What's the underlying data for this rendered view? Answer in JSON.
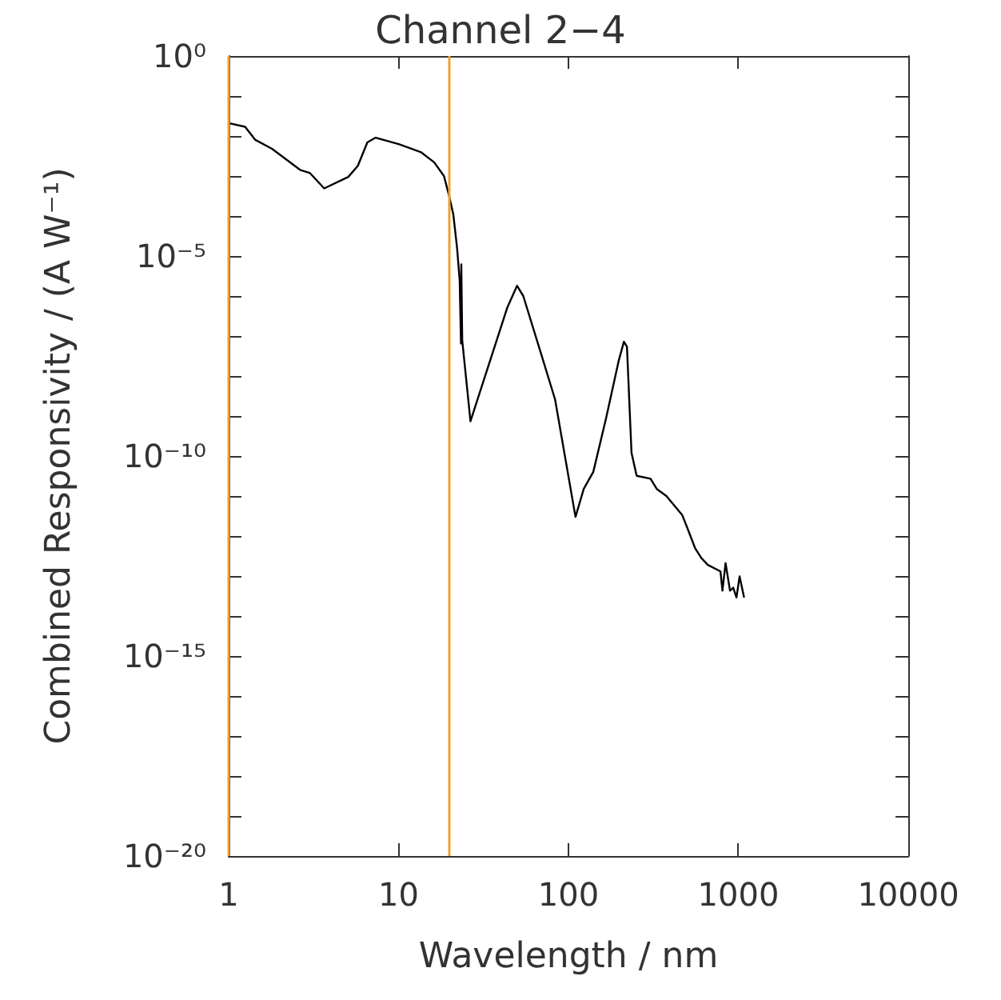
{
  "chart_data": {
    "type": "line",
    "title": "Channel 2−4",
    "xlabel": "Wavelength / nm",
    "ylabel": "Combined Responsivity / (A W⁻¹)",
    "log": "xy",
    "grid": false,
    "marker": "none",
    "line_style": "solid",
    "xlim": [
      1,
      10000
    ],
    "xticks": [
      1,
      10,
      100,
      1000,
      10000
    ],
    "ylim": [
      1e-20,
      1
    ],
    "yticks": [
      {
        "value": 1e-20,
        "label": "10⁻²⁰"
      },
      {
        "value": 1e-19,
        "label": null
      },
      {
        "value": 1e-18,
        "label": null
      },
      {
        "value": 1e-17,
        "label": null
      },
      {
        "value": 1e-16,
        "label": null
      },
      {
        "value": 1e-15,
        "label": "10⁻¹⁵"
      },
      {
        "value": 1e-14,
        "label": null
      },
      {
        "value": 1e-13,
        "label": null
      },
      {
        "value": 1e-12,
        "label": null
      },
      {
        "value": 1e-11,
        "label": null
      },
      {
        "value": 1e-10,
        "label": "10⁻¹⁰"
      },
      {
        "value": 1e-09,
        "label": null
      },
      {
        "value": 1e-08,
        "label": null
      },
      {
        "value": 1e-07,
        "label": null
      },
      {
        "value": 1e-06,
        "label": null
      },
      {
        "value": 1e-05,
        "label": "10⁻⁵"
      },
      {
        "value": 0.0001,
        "label": null
      },
      {
        "value": 0.001,
        "label": null
      },
      {
        "value": 0.01,
        "label": null
      },
      {
        "value": 0.1,
        "label": null
      },
      {
        "value": 1,
        "label": "10⁰"
      }
    ],
    "ref_lines": [
      {
        "axis": "x",
        "value": 1,
        "label": null,
        "color": "#f0a030"
      },
      {
        "axis": "x",
        "value": 20,
        "label": null,
        "color": "#f0a030"
      }
    ],
    "series": [
      {
        "color": "#000000",
        "x": [
          1,
          1.25,
          1.43,
          1.8,
          2.65,
          3.0,
          3.65,
          5.06,
          5.76,
          6.55,
          7.33,
          10.1,
          13.6,
          16.2,
          18.5,
          19.8,
          21.0,
          22.1,
          22.9,
          23.3,
          23.4,
          23.7,
          26.5,
          43.7,
          49.8,
          54.2,
          69.0,
          83.4,
          110,
          123,
          140,
          166,
          198,
          212,
          221,
          235,
          252,
          304,
          331,
          377,
          468,
          510,
          556,
          606,
          661,
          785,
          806,
          841,
          893,
          933,
          975,
          1017,
          1081
        ],
        "values": [
          0.021,
          0.017,
          0.0081,
          0.0048,
          0.0014,
          0.0012,
          0.00049,
          0.00095,
          0.0018,
          0.0069,
          0.0091,
          0.0062,
          0.0039,
          0.0022,
          0.001,
          0.00033,
          0.00011,
          1.6e-05,
          2.4e-06,
          6.5e-08,
          6.2e-06,
          7.8e-08,
          7.4e-10,
          5.2e-07,
          1.8e-06,
          1e-06,
          3.6e-08,
          2.6e-09,
          3e-12,
          1.5e-11,
          4e-11,
          8.3e-10,
          2.5e-08,
          7.2e-08,
          5.4e-08,
          1.2e-10,
          3.2e-11,
          2.7e-11,
          1.5e-11,
          1e-11,
          3.3e-12,
          1.3e-12,
          5e-13,
          2.8e-13,
          1.9e-13,
          1.3e-13,
          4.3e-14,
          2.1e-13,
          4.3e-14,
          5.1e-14,
          2.9e-14,
          9.8e-14,
          2.9e-14
        ]
      }
    ]
  }
}
